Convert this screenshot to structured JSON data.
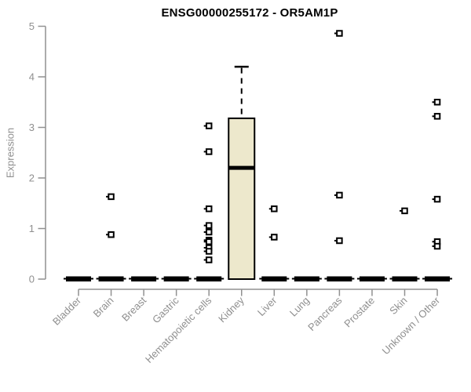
{
  "chart_data": {
    "type": "boxplot",
    "title": "ENSG00000255172 - OR5AM1P",
    "ylabel": "Expression",
    "xlabel": "",
    "ylim": [
      0,
      5
    ],
    "yticks": [
      0,
      1,
      2,
      3,
      4,
      5
    ],
    "grid": false,
    "legend": "none",
    "categories": [
      "Bladder",
      "Brain",
      "Breast",
      "Gastric",
      "Hematopoietic cells",
      "Kidney",
      "Liver",
      "Lung",
      "Pancreas",
      "Prostate",
      "Skin",
      "Unknown / Other"
    ],
    "boxes": [
      {
        "category": "Bladder",
        "whisker_low": 0,
        "q1": 0,
        "median": 0,
        "q3": 0,
        "whisker_high": 0,
        "outliers": []
      },
      {
        "category": "Brain",
        "whisker_low": 0,
        "q1": 0,
        "median": 0,
        "q3": 0,
        "whisker_high": 0,
        "outliers": [
          1.63,
          0.88
        ]
      },
      {
        "category": "Breast",
        "whisker_low": 0,
        "q1": 0,
        "median": 0,
        "q3": 0,
        "whisker_high": 0,
        "outliers": []
      },
      {
        "category": "Gastric",
        "whisker_low": 0,
        "q1": 0,
        "median": 0,
        "q3": 0,
        "whisker_high": 0,
        "outliers": []
      },
      {
        "category": "Hematopoietic cells",
        "whisker_low": 0,
        "q1": 0,
        "median": 0,
        "q3": 0,
        "whisker_high": 0,
        "outliers": [
          3.03,
          2.52,
          1.39,
          1.06,
          0.93,
          0.77,
          0.74,
          0.62,
          0.55,
          0.38
        ]
      },
      {
        "category": "Kidney",
        "whisker_low": 0,
        "q1": 0,
        "median": 2.2,
        "q3": 3.18,
        "whisker_high": 4.2,
        "outliers": []
      },
      {
        "category": "Liver",
        "whisker_low": 0,
        "q1": 0,
        "median": 0,
        "q3": 0,
        "whisker_high": 0,
        "outliers": [
          1.39,
          0.83
        ]
      },
      {
        "category": "Lung",
        "whisker_low": 0,
        "q1": 0,
        "median": 0,
        "q3": 0,
        "whisker_high": 0,
        "outliers": []
      },
      {
        "category": "Pancreas",
        "whisker_low": 0,
        "q1": 0,
        "median": 0,
        "q3": 0,
        "whisker_high": 0,
        "outliers": [
          4.86,
          1.66,
          0.76
        ]
      },
      {
        "category": "Prostate",
        "whisker_low": 0,
        "q1": 0,
        "median": 0,
        "q3": 0,
        "whisker_high": 0,
        "outliers": []
      },
      {
        "category": "Skin",
        "whisker_low": 0,
        "q1": 0,
        "median": 0,
        "q3": 0,
        "whisker_high": 0,
        "outliers": [
          1.35
        ]
      },
      {
        "category": "Unknown / Other",
        "whisker_low": 0,
        "q1": 0,
        "median": 0,
        "q3": 0,
        "whisker_high": 0,
        "outliers": [
          3.5,
          3.22,
          1.58,
          0.74,
          0.65
        ]
      }
    ],
    "colors": {
      "box_fill": "#EDE8CC",
      "box_stroke": "#000000",
      "median": "#000000",
      "outlier_stroke": "#000000",
      "outlier_fill": "#ffffff",
      "axis": "#919191",
      "tick_label": "#8f8f8f",
      "title": "#000000",
      "background": "#ffffff"
    }
  }
}
